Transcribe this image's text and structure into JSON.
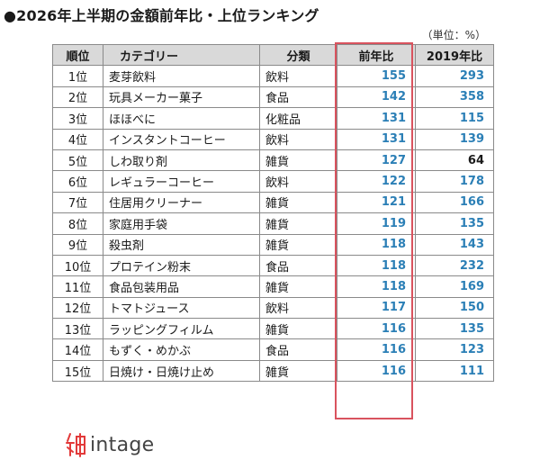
{
  "title": "●2026年上半期の金額前年比・上位ランキング",
  "unit_note": "（単位：%）",
  "columns": [
    "順位",
    "カテゴリー",
    "分類",
    "前年比",
    "2019年比"
  ],
  "chart_data": {
    "type": "table",
    "title": "●2026年上半期の金額前年比・上位ランキング",
    "columns": [
      "順位",
      "カテゴリー",
      "分類",
      "前年比",
      "2019年比"
    ],
    "rows": [
      {
        "rank": "1位",
        "category": "麦芽飲料",
        "class": "飲料",
        "yoy": 155,
        "vs2019": 293
      },
      {
        "rank": "2位",
        "category": "玩具メーカー菓子",
        "class": "食品",
        "yoy": 142,
        "vs2019": 358
      },
      {
        "rank": "3位",
        "category": "ほほべに",
        "class": "化粧品",
        "yoy": 131,
        "vs2019": 115
      },
      {
        "rank": "4位",
        "category": "インスタントコーヒー",
        "class": "飲料",
        "yoy": 131,
        "vs2019": 139
      },
      {
        "rank": "5位",
        "category": "しわ取り剤",
        "class": "雑貨",
        "yoy": 127,
        "vs2019": 64
      },
      {
        "rank": "6位",
        "category": "レギュラーコーヒー",
        "class": "飲料",
        "yoy": 122,
        "vs2019": 178
      },
      {
        "rank": "7位",
        "category": "住居用クリーナー",
        "class": "雑貨",
        "yoy": 121,
        "vs2019": 166
      },
      {
        "rank": "8位",
        "category": "家庭用手袋",
        "class": "雑貨",
        "yoy": 119,
        "vs2019": 135
      },
      {
        "rank": "9位",
        "category": "殺虫剤",
        "class": "雑貨",
        "yoy": 118,
        "vs2019": 143
      },
      {
        "rank": "10位",
        "category": "プロテイン粉末",
        "class": "食品",
        "yoy": 118,
        "vs2019": 232
      },
      {
        "rank": "11位",
        "category": "食品包装用品",
        "class": "雑貨",
        "yoy": 118,
        "vs2019": 169
      },
      {
        "rank": "12位",
        "category": "トマトジュース",
        "class": "飲料",
        "yoy": 117,
        "vs2019": 150
      },
      {
        "rank": "13位",
        "category": "ラッピングフィルム",
        "class": "雑貨",
        "yoy": 116,
        "vs2019": 135
      },
      {
        "rank": "14位",
        "category": "もずく・めかぶ",
        "class": "食品",
        "yoy": 116,
        "vs2019": 123
      },
      {
        "rank": "15位",
        "category": "日焼け・日焼け止め",
        "class": "雑貨",
        "yoy": 116,
        "vs2019": 111
      }
    ],
    "highlighted_column": "前年比",
    "colors": {
      "value": "#2b7fb6",
      "value_below_100": "#1a1a1a",
      "highlight_border": "#d9535e",
      "header_bg": "#d9d9d9"
    }
  },
  "logo": {
    "text": "intage",
    "icon": "intage-logo-icon",
    "color": "#e23a3a"
  }
}
